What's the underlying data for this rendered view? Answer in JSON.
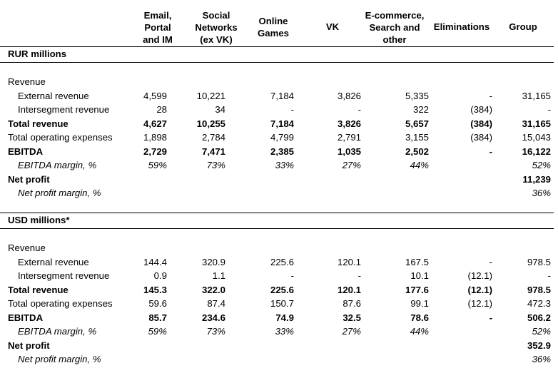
{
  "columns": [
    {
      "label": "Email,\nPortal\nand IM"
    },
    {
      "label": "Social\nNetworks\n(ex VK)"
    },
    {
      "label": "Online\nGames"
    },
    {
      "label": "VK"
    },
    {
      "label": "E-commerce,\nSearch and\nother"
    },
    {
      "label": "Eliminations"
    },
    {
      "label": "Group"
    }
  ],
  "sections": [
    {
      "title": "RUR millions",
      "group_label": "Revenue",
      "rows": [
        {
          "label": "External revenue",
          "style": "indent",
          "values": [
            "4,599",
            "10,221",
            "7,184",
            "3,826",
            "5,335",
            "-",
            "31,165"
          ]
        },
        {
          "label": "Intersegment revenue",
          "style": "indent",
          "values": [
            "28",
            "34",
            "-",
            "-",
            "322",
            "(384)",
            "-"
          ]
        },
        {
          "label": "Total revenue",
          "style": "bold",
          "values": [
            "4,627",
            "10,255",
            "7,184",
            "3,826",
            "5,657",
            "(384)",
            "31,165"
          ]
        },
        {
          "label": "Total operating expenses",
          "style": "plain",
          "values": [
            "1,898",
            "2,784",
            "4,799",
            "2,791",
            "3,155",
            "(384)",
            "15,043"
          ]
        },
        {
          "label": "EBITDA",
          "style": "bold",
          "values": [
            "2,729",
            "7,471",
            "2,385",
            "1,035",
            "2,502",
            "-",
            "16,122"
          ]
        },
        {
          "label": "EBITDA margin, %",
          "style": "italic",
          "values": [
            "59%",
            "73%",
            "33%",
            "27%",
            "44%",
            "",
            "52%"
          ]
        },
        {
          "label": "Net profit",
          "style": "bold",
          "values": [
            "",
            "",
            "",
            "",
            "",
            "",
            "11,239"
          ]
        },
        {
          "label": "Net profit margin, %",
          "style": "italic",
          "values": [
            "",
            "",
            "",
            "",
            "",
            "",
            "36%"
          ]
        }
      ]
    },
    {
      "title": "USD millions*",
      "group_label": "Revenue",
      "rows": [
        {
          "label": "External revenue",
          "style": "indent",
          "values": [
            "144.4",
            "320.9",
            "225.6",
            "120.1",
            "167.5",
            "-",
            "978.5"
          ]
        },
        {
          "label": "Intersegment revenue",
          "style": "indent",
          "values": [
            "0.9",
            "1.1",
            "-",
            "-",
            "10.1",
            "(12.1)",
            "-"
          ]
        },
        {
          "label": "Total revenue",
          "style": "bold",
          "values": [
            "145.3",
            "322.0",
            "225.6",
            "120.1",
            "177.6",
            "(12.1)",
            "978.5"
          ]
        },
        {
          "label": "Total operating expenses",
          "style": "plain",
          "values": [
            "59.6",
            "87.4",
            "150.7",
            "87.6",
            "99.1",
            "(12.1)",
            "472.3"
          ]
        },
        {
          "label": "EBITDA",
          "style": "bold",
          "values": [
            "85.7",
            "234.6",
            "74.9",
            "32.5",
            "78.6",
            "-",
            "506.2"
          ]
        },
        {
          "label": "EBITDA margin, %",
          "style": "italic",
          "values": [
            "59%",
            "73%",
            "33%",
            "27%",
            "44%",
            "",
            "52%"
          ]
        },
        {
          "label": "Net profit",
          "style": "bold",
          "values": [
            "",
            "",
            "",
            "",
            "",
            "",
            "352.9"
          ]
        },
        {
          "label": "Net profit margin, %",
          "style": "italic",
          "values": [
            "",
            "",
            "",
            "",
            "",
            "",
            "36%"
          ]
        }
      ]
    }
  ]
}
